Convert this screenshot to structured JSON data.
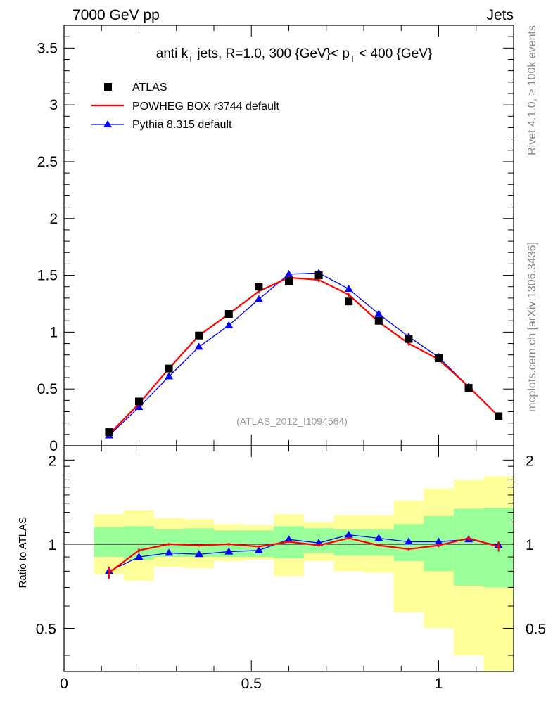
{
  "header": {
    "left": "7000 GeV pp",
    "right": "Jets"
  },
  "side_labels": {
    "top": "Rivet 4.1.0, ≥ 100k events",
    "bottom": "mcplots.cern.ch [arXiv:1306.3436]"
  },
  "colors": {
    "data": "#000000",
    "powheg": "#ff0000",
    "pythia": "#0000ff",
    "band_1sigma": "#99ff99",
    "band_2sigma": "#ffff99"
  },
  "chart_data": [
    {
      "type": "scatter",
      "title": "anti k_T jets, R=1.0,  300 {GeV}< p_T < 400 {GeV}",
      "title_parts": {
        "a": "anti k",
        "sub1": "T",
        "b": " jets, R=1.0,  300 {GeV}< p",
        "sub2": "T",
        "c": " < 400 {GeV}"
      },
      "reference": "(ATLAS_2012_I1094564)",
      "xlim": [
        0,
        1.2
      ],
      "ylim": [
        0,
        3.7
      ],
      "yticks": [
        {
          "v": 0,
          "label": "0"
        },
        {
          "v": 0.5,
          "label": "0.5"
        },
        {
          "v": 1,
          "label": "1"
        },
        {
          "v": 1.5,
          "label": "1.5"
        },
        {
          "v": 2,
          "label": "2"
        },
        {
          "v": 2.5,
          "label": "2.5"
        },
        {
          "v": 3,
          "label": "3"
        },
        {
          "v": 3.5,
          "label": "3.5"
        }
      ],
      "x": [
        0.12,
        0.2,
        0.28,
        0.36,
        0.44,
        0.52,
        0.6,
        0.68,
        0.76,
        0.84,
        0.92,
        1.0,
        1.08,
        1.16
      ],
      "series": [
        {
          "name": "ATLAS",
          "style": "square",
          "color": "#000000",
          "values": [
            0.12,
            0.39,
            0.68,
            0.97,
            1.16,
            1.4,
            1.45,
            1.5,
            1.27,
            1.1,
            0.94,
            0.77,
            0.51,
            0.26
          ]
        },
        {
          "name": "POWHEG BOX r3744 default",
          "style": "line",
          "color": "#ff0000",
          "values": [
            0.1,
            0.37,
            0.68,
            0.97,
            1.16,
            1.36,
            1.48,
            1.46,
            1.33,
            1.09,
            0.9,
            0.76,
            0.52,
            0.26
          ]
        },
        {
          "name": "Pythia 8.315 default",
          "style": "triangle",
          "color": "#0000ff",
          "values": [
            0.09,
            0.34,
            0.61,
            0.87,
            1.06,
            1.29,
            1.51,
            1.52,
            1.38,
            1.16,
            0.96,
            0.78,
            0.52,
            0.26
          ]
        }
      ]
    },
    {
      "type": "line",
      "ylabel": "Ratio to ATLAS",
      "xlim": [
        0,
        1.2
      ],
      "ylim": [
        0.35,
        2.25
      ],
      "yticks": [
        {
          "v": 0.5,
          "label": "0.5"
        },
        {
          "v": 1,
          "label": "1"
        },
        {
          "v": 2,
          "label": "2"
        }
      ],
      "xticks": [
        {
          "v": 0,
          "label": "0"
        },
        {
          "v": 0.5,
          "label": "0.5"
        },
        {
          "v": 1,
          "label": "1"
        }
      ],
      "bin_edges": [
        0.08,
        0.16,
        0.24,
        0.32,
        0.4,
        0.48,
        0.56,
        0.64,
        0.72,
        0.8,
        0.88,
        0.96,
        1.04,
        1.12,
        1.2
      ],
      "band_1sigma": [
        [
          0.9,
          1.15
        ],
        [
          0.88,
          1.16
        ],
        [
          0.9,
          1.13
        ],
        [
          0.9,
          1.14
        ],
        [
          0.9,
          1.12
        ],
        [
          0.9,
          1.12
        ],
        [
          0.89,
          1.16
        ],
        [
          0.93,
          1.14
        ],
        [
          0.91,
          1.13
        ],
        [
          0.91,
          1.13
        ],
        [
          0.87,
          1.18
        ],
        [
          0.8,
          1.26
        ],
        [
          0.71,
          1.34
        ],
        [
          0.7,
          1.35
        ]
      ],
      "band_2sigma": [
        [
          0.78,
          1.28
        ],
        [
          0.74,
          1.32
        ],
        [
          0.83,
          1.24
        ],
        [
          0.82,
          1.23
        ],
        [
          0.87,
          1.18
        ],
        [
          0.88,
          1.17
        ],
        [
          0.77,
          1.28
        ],
        [
          0.87,
          1.2
        ],
        [
          0.8,
          1.27
        ],
        [
          0.79,
          1.27
        ],
        [
          0.57,
          1.43
        ],
        [
          0.5,
          1.58
        ],
        [
          0.4,
          1.7
        ],
        [
          0.32,
          1.75
        ]
      ],
      "x": [
        0.12,
        0.2,
        0.28,
        0.36,
        0.44,
        0.52,
        0.6,
        0.68,
        0.76,
        0.84,
        0.92,
        1.0,
        1.08,
        1.16
      ],
      "series": [
        {
          "name": "POWHEG BOX r3744 default",
          "color": "#ff0000",
          "values": [
            0.79,
            0.95,
            1.0,
            0.99,
            1.0,
            0.98,
            1.02,
            0.99,
            1.05,
            0.99,
            0.96,
            0.99,
            1.05,
            0.98
          ],
          "err": [
            0.04,
            0.015,
            0.01,
            0.01,
            0.01,
            0.01,
            0.01,
            0.01,
            0.01,
            0.01,
            0.01,
            0.015,
            0.02,
            0.04
          ]
        },
        {
          "name": "Pythia 8.315 default",
          "color": "#0000ff",
          "values": [
            0.8,
            0.9,
            0.93,
            0.92,
            0.94,
            0.95,
            1.04,
            1.01,
            1.08,
            1.05,
            1.02,
            1.02,
            1.04,
            0.99
          ],
          "err": [
            0.02,
            0.01,
            0.01,
            0.01,
            0.01,
            0.01,
            0.01,
            0.01,
            0.01,
            0.01,
            0.01,
            0.01,
            0.015,
            0.03
          ]
        }
      ]
    }
  ]
}
